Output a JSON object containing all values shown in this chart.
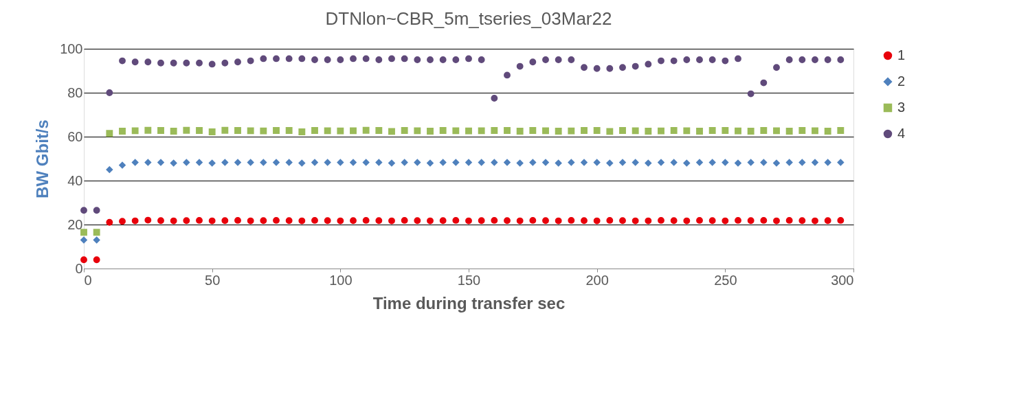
{
  "chart_data": {
    "type": "scatter",
    "title": "DTNlon~CBR_5m_tseries_03Mar22",
    "xlabel": "Time during transfer sec",
    "ylabel": "BW Gbit/s",
    "x": [
      0,
      5,
      10,
      15,
      20,
      25,
      30,
      35,
      40,
      45,
      50,
      55,
      60,
      65,
      70,
      75,
      80,
      85,
      90,
      95,
      100,
      105,
      110,
      115,
      120,
      125,
      130,
      135,
      140,
      145,
      150,
      155,
      160,
      165,
      170,
      175,
      180,
      185,
      190,
      195,
      200,
      205,
      210,
      215,
      220,
      225,
      230,
      235,
      240,
      245,
      250,
      255,
      260,
      265,
      270,
      275,
      280,
      285,
      290,
      295
    ],
    "series": [
      {
        "name": "1",
        "color": "#e8000b",
        "marker": "circle",
        "values": [
          4,
          4,
          21,
          21.5,
          21.7,
          22,
          21.8,
          21.7,
          21.8,
          21.9,
          21.7,
          21.8,
          21.9,
          21.7,
          21.8,
          21.9,
          21.8,
          21.7,
          21.9,
          21.8,
          21.7,
          21.8,
          21.9,
          21.8,
          21.7,
          21.9,
          21.8,
          21.7,
          21.8,
          21.9,
          21.7,
          21.8,
          21.9,
          21.8,
          21.7,
          21.9,
          21.8,
          21.7,
          21.9,
          21.8,
          21.7,
          21.9,
          21.8,
          21.7,
          21.7,
          21.9,
          21.8,
          21.7,
          21.9,
          21.8,
          21.7,
          21.9,
          21.8,
          21.9,
          21.7,
          21.9,
          21.8,
          21.7,
          21.8,
          21.9
        ]
      },
      {
        "name": "2",
        "color": "#4f81bd",
        "marker": "diamond",
        "values": [
          13,
          13,
          45,
          47,
          48.3,
          48.3,
          48.3,
          48,
          48.3,
          48.3,
          48,
          48.3,
          48.3,
          48.3,
          48.3,
          48.3,
          48.3,
          48,
          48.3,
          48.3,
          48.3,
          48.3,
          48.3,
          48.3,
          48,
          48.3,
          48.3,
          48,
          48.3,
          48.3,
          48.3,
          48.3,
          48.3,
          48.3,
          48,
          48.3,
          48.3,
          48,
          48.3,
          48.3,
          48.3,
          48,
          48.3,
          48.3,
          48,
          48.3,
          48.3,
          48,
          48.3,
          48.3,
          48.3,
          48,
          48.3,
          48.3,
          48,
          48.3,
          48.3,
          48.3,
          48.3,
          48.3
        ]
      },
      {
        "name": "3",
        "color": "#9bbb59",
        "marker": "square",
        "values": [
          16.5,
          16.5,
          61.5,
          62.5,
          62.7,
          62.9,
          62.8,
          62.5,
          62.9,
          62.8,
          62.2,
          62.9,
          62.8,
          62.7,
          62.6,
          62.8,
          62.8,
          62.2,
          62.8,
          62.7,
          62.6,
          62.7,
          62.9,
          62.8,
          62.4,
          62.8,
          62.7,
          62.5,
          62.8,
          62.7,
          62.6,
          62.7,
          62.8,
          62.8,
          62.5,
          62.8,
          62.7,
          62.5,
          62.6,
          62.8,
          62.8,
          62.4,
          62.8,
          62.7,
          62.5,
          62.6,
          62.8,
          62.7,
          62.5,
          62.8,
          62.8,
          62.6,
          62.5,
          62.8,
          62.7,
          62.5,
          62.8,
          62.7,
          62.5,
          62.8
        ]
      },
      {
        "name": "4",
        "color": "#604a7b",
        "marker": "circle",
        "values": [
          26.5,
          26.5,
          80,
          94.5,
          94,
          94,
          93.5,
          93.5,
          93.5,
          93.5,
          93,
          93.5,
          94,
          94.5,
          95.5,
          95.5,
          95.5,
          95.5,
          95,
          95,
          95,
          95.5,
          95.5,
          95,
          95.5,
          95.5,
          95,
          95,
          95,
          95,
          95.5,
          95,
          77.5,
          88,
          92,
          94,
          95,
          95,
          95,
          91.5,
          91,
          91,
          91.5,
          92,
          93,
          94.5,
          94.5,
          95,
          95,
          95,
          94.5,
          95.5,
          79.5,
          84.5,
          91.5,
          95,
          95,
          95,
          95,
          95
        ]
      }
    ],
    "xlim": [
      0,
      300
    ],
    "xticks": [
      0,
      50,
      100,
      150,
      200,
      250,
      300
    ],
    "ylim": [
      0,
      100
    ],
    "yticks": [
      0,
      20,
      40,
      60,
      80,
      100
    ],
    "grid": "y",
    "legend": "right"
  }
}
